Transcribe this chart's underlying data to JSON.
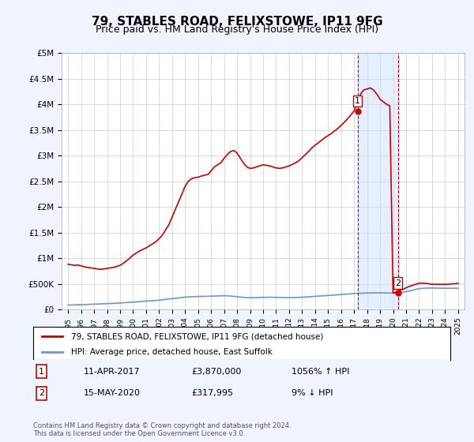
{
  "title": "79, STABLES ROAD, FELIXSTOWE, IP11 9FG",
  "subtitle": "Price paid vs. HM Land Registry's House Price Index (HPI)",
  "title_fontsize": 11,
  "subtitle_fontsize": 9,
  "background_color": "#f0f4ff",
  "plot_bg_color": "#ffffff",
  "ylim": [
    0,
    5000000
  ],
  "yticks": [
    0,
    500000,
    1000000,
    1500000,
    2000000,
    2500000,
    3000000,
    3500000,
    4000000,
    4500000,
    5000000
  ],
  "ytick_labels": [
    "£0",
    "£500K",
    "£1M",
    "£1.5M",
    "£2M",
    "£2.5M",
    "£3M",
    "£3.5M",
    "£4M",
    "£4.5M",
    "£5M"
  ],
  "xlim": [
    1994.5,
    2025.5
  ],
  "xticks": [
    1995,
    1996,
    1997,
    1998,
    1999,
    2000,
    2001,
    2002,
    2003,
    2004,
    2005,
    2006,
    2007,
    2008,
    2009,
    2010,
    2011,
    2012,
    2013,
    2014,
    2015,
    2016,
    2017,
    2018,
    2019,
    2020,
    2021,
    2022,
    2023,
    2024,
    2025
  ],
  "red_line_color": "#cc0000",
  "blue_line_color": "#6699cc",
  "marker1_x": 2017.28,
  "marker1_y": 3870000,
  "marker1_label": "1",
  "marker1_date": "11-APR-2017",
  "marker1_price": "£3,870,000",
  "marker1_hpi": "1056% ↑ HPI",
  "marker2_x": 2020.37,
  "marker2_y": 317995,
  "marker2_label": "2",
  "marker2_date": "15-MAY-2020",
  "marker2_price": "£317,995",
  "marker2_hpi": "9% ↓ HPI",
  "legend1": "79, STABLES ROAD, FELIXSTOWE, IP11 9FG (detached house)",
  "legend2": "HPI: Average price, detached house, East Suffolk",
  "footer": "Contains HM Land Registry data © Crown copyright and database right 2024.\nThis data is licensed under the Open Government Licence v3.0.",
  "shaded_region_x1": 2017.28,
  "shaded_region_x2": 2020.37,
  "red_line_x": [
    1995.0,
    1995.25,
    1995.5,
    1995.75,
    1996.0,
    1996.25,
    1996.5,
    1996.75,
    1997.0,
    1997.25,
    1997.5,
    1997.75,
    1998.0,
    1998.25,
    1998.5,
    1998.75,
    1999.0,
    1999.25,
    1999.5,
    1999.75,
    2000.0,
    2000.25,
    2000.5,
    2000.75,
    2001.0,
    2001.25,
    2001.5,
    2001.75,
    2002.0,
    2002.25,
    2002.5,
    2002.75,
    2003.0,
    2003.25,
    2003.5,
    2003.75,
    2004.0,
    2004.25,
    2004.5,
    2004.75,
    2005.0,
    2005.25,
    2005.5,
    2005.75,
    2006.0,
    2006.25,
    2006.5,
    2006.75,
    2007.0,
    2007.25,
    2007.5,
    2007.75,
    2008.0,
    2008.25,
    2008.5,
    2008.75,
    2009.0,
    2009.25,
    2009.5,
    2009.75,
    2010.0,
    2010.25,
    2010.5,
    2010.75,
    2011.0,
    2011.25,
    2011.5,
    2011.75,
    2012.0,
    2012.25,
    2012.5,
    2012.75,
    2013.0,
    2013.25,
    2013.5,
    2013.75,
    2014.0,
    2014.25,
    2014.5,
    2014.75,
    2015.0,
    2015.25,
    2015.5,
    2015.75,
    2016.0,
    2016.25,
    2016.5,
    2016.75,
    2017.0,
    2017.28,
    2017.5,
    2017.75,
    2018.0,
    2018.25,
    2018.5,
    2018.75,
    2019.0,
    2019.25,
    2019.5,
    2019.75,
    2020.0,
    2020.37,
    2020.5,
    2020.75,
    2021.0,
    2021.25,
    2021.5,
    2021.75,
    2022.0,
    2022.25,
    2022.5,
    2022.75,
    2023.0,
    2023.25,
    2023.5,
    2023.75,
    2024.0,
    2024.25,
    2024.5,
    2024.75,
    2025.0
  ],
  "red_line_y": [
    880000,
    870000,
    860000,
    865000,
    850000,
    830000,
    820000,
    810000,
    800000,
    790000,
    780000,
    790000,
    800000,
    810000,
    820000,
    840000,
    860000,
    900000,
    950000,
    1000000,
    1060000,
    1100000,
    1140000,
    1170000,
    1200000,
    1240000,
    1280000,
    1320000,
    1380000,
    1450000,
    1550000,
    1650000,
    1800000,
    1950000,
    2100000,
    2250000,
    2400000,
    2500000,
    2550000,
    2570000,
    2580000,
    2600000,
    2620000,
    2630000,
    2700000,
    2780000,
    2820000,
    2860000,
    2950000,
    3020000,
    3080000,
    3100000,
    3050000,
    2950000,
    2850000,
    2780000,
    2750000,
    2760000,
    2780000,
    2800000,
    2820000,
    2810000,
    2800000,
    2780000,
    2760000,
    2750000,
    2760000,
    2780000,
    2800000,
    2830000,
    2860000,
    2900000,
    2960000,
    3020000,
    3080000,
    3150000,
    3200000,
    3250000,
    3300000,
    3350000,
    3390000,
    3430000,
    3480000,
    3530000,
    3590000,
    3650000,
    3720000,
    3790000,
    3870000,
    4050000,
    4200000,
    4280000,
    4300000,
    4320000,
    4280000,
    4200000,
    4100000,
    4050000,
    4000000,
    3970000,
    317995,
    350000,
    370000,
    390000,
    420000,
    450000,
    470000,
    490000,
    510000,
    510000,
    510000,
    500000,
    490000,
    490000,
    490000,
    490000,
    490000,
    490000,
    500000,
    500000,
    510000
  ],
  "blue_line_x": [
    1995.0,
    1995.5,
    1996.0,
    1996.5,
    1997.0,
    1997.5,
    1998.0,
    1998.5,
    1999.0,
    1999.5,
    2000.0,
    2000.5,
    2001.0,
    2001.5,
    2002.0,
    2002.5,
    2003.0,
    2003.5,
    2004.0,
    2004.5,
    2005.0,
    2005.5,
    2006.0,
    2006.5,
    2007.0,
    2007.5,
    2008.0,
    2008.5,
    2009.0,
    2009.5,
    2010.0,
    2010.5,
    2011.0,
    2011.5,
    2012.0,
    2012.5,
    2013.0,
    2013.5,
    2014.0,
    2014.5,
    2015.0,
    2015.5,
    2016.0,
    2016.5,
    2017.0,
    2017.5,
    2018.0,
    2018.5,
    2019.0,
    2019.5,
    2020.0,
    2020.5,
    2021.0,
    2021.5,
    2022.0,
    2022.5,
    2023.0,
    2023.5,
    2024.0,
    2024.5,
    2025.0
  ],
  "blue_line_y": [
    85000,
    88000,
    92000,
    97000,
    103000,
    108000,
    113000,
    118000,
    125000,
    133000,
    142000,
    152000,
    162000,
    170000,
    180000,
    195000,
    210000,
    225000,
    240000,
    248000,
    252000,
    255000,
    258000,
    262000,
    268000,
    260000,
    248000,
    235000,
    228000,
    230000,
    235000,
    238000,
    235000,
    232000,
    230000,
    232000,
    238000,
    245000,
    255000,
    263000,
    272000,
    280000,
    290000,
    300000,
    310000,
    315000,
    320000,
    322000,
    323000,
    320000,
    317995,
    325000,
    345000,
    375000,
    405000,
    415000,
    418000,
    415000,
    413000,
    412000,
    411000
  ]
}
